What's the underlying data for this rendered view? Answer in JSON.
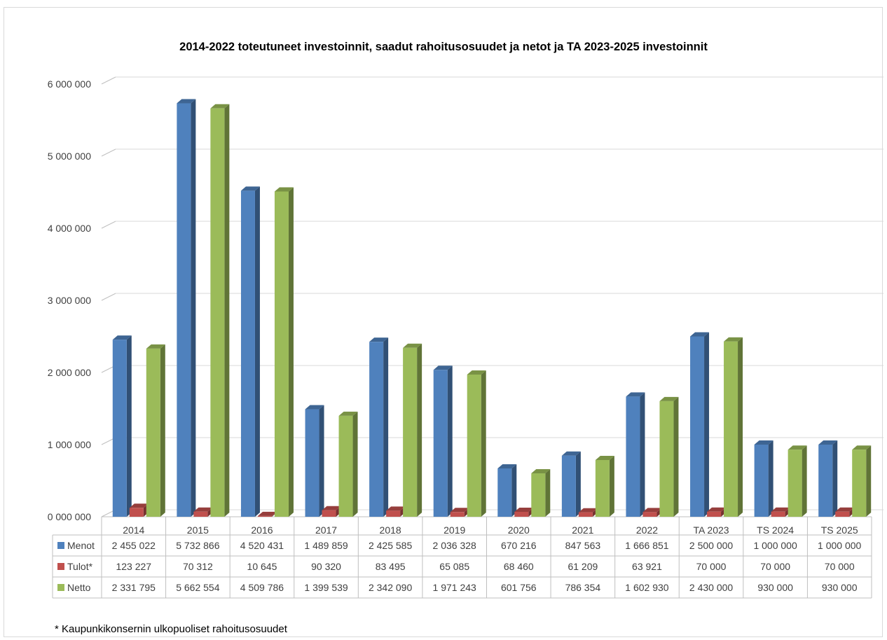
{
  "chart_data": {
    "type": "bar",
    "title": "2014-2022 toteutuneet investoinnit, saadut rahoitusosuudet ja netot ja TA 2023-2025 investoinnit",
    "categories": [
      "2014",
      "2015",
      "2016",
      "2017",
      "2018",
      "2019",
      "2020",
      "2021",
      "2022",
      "TA 2023",
      "TS 2024",
      "TS 2025"
    ],
    "series": [
      {
        "name": "Menot",
        "color": "#4f81bd",
        "values": [
          2455022,
          5732866,
          4520431,
          1489859,
          2425585,
          2036328,
          670216,
          847563,
          1666851,
          2500000,
          1000000,
          1000000
        ],
        "labels": [
          "2 455 022",
          "5 732 866",
          "4 520 431",
          "1 489 859",
          "2 425 585",
          "2 036 328",
          "670 216",
          "847 563",
          "1 666 851",
          "2 500 000",
          "1 000 000",
          "1 000 000"
        ]
      },
      {
        "name": "Tulot*",
        "color": "#c0504d",
        "values": [
          123227,
          70312,
          10645,
          90320,
          83495,
          65085,
          68460,
          61209,
          63921,
          70000,
          70000,
          70000
        ],
        "labels": [
          "123 227",
          "70 312",
          "10 645",
          "90 320",
          "83 495",
          "65 085",
          "68 460",
          "61 209",
          "63 921",
          "70 000",
          "70 000",
          "70 000"
        ]
      },
      {
        "name": "Netto",
        "color": "#9bbb59",
        "values": [
          2331795,
          5662554,
          4509786,
          1399539,
          2342090,
          1971243,
          601756,
          786354,
          1602930,
          2430000,
          930000,
          930000
        ],
        "labels": [
          "2 331 795",
          "5 662 554",
          "4 509 786",
          "1 399 539",
          "2 342 090",
          "1 971 243",
          "601 756",
          "786 354",
          "1 602 930",
          "2 430 000",
          "930 000",
          "930 000"
        ]
      }
    ],
    "ylim": [
      0,
      6000000
    ],
    "yticks": [
      "0 000 000",
      "1 000 000",
      "2 000 000",
      "3 000 000",
      "4 000 000",
      "5 000 000",
      "6 000 000"
    ],
    "grid": true,
    "legend": "data-table",
    "style": "3d-clustered-column"
  },
  "footnote": "* Kaupunkikonsernin ulkopuoliset rahoitusosuudet"
}
